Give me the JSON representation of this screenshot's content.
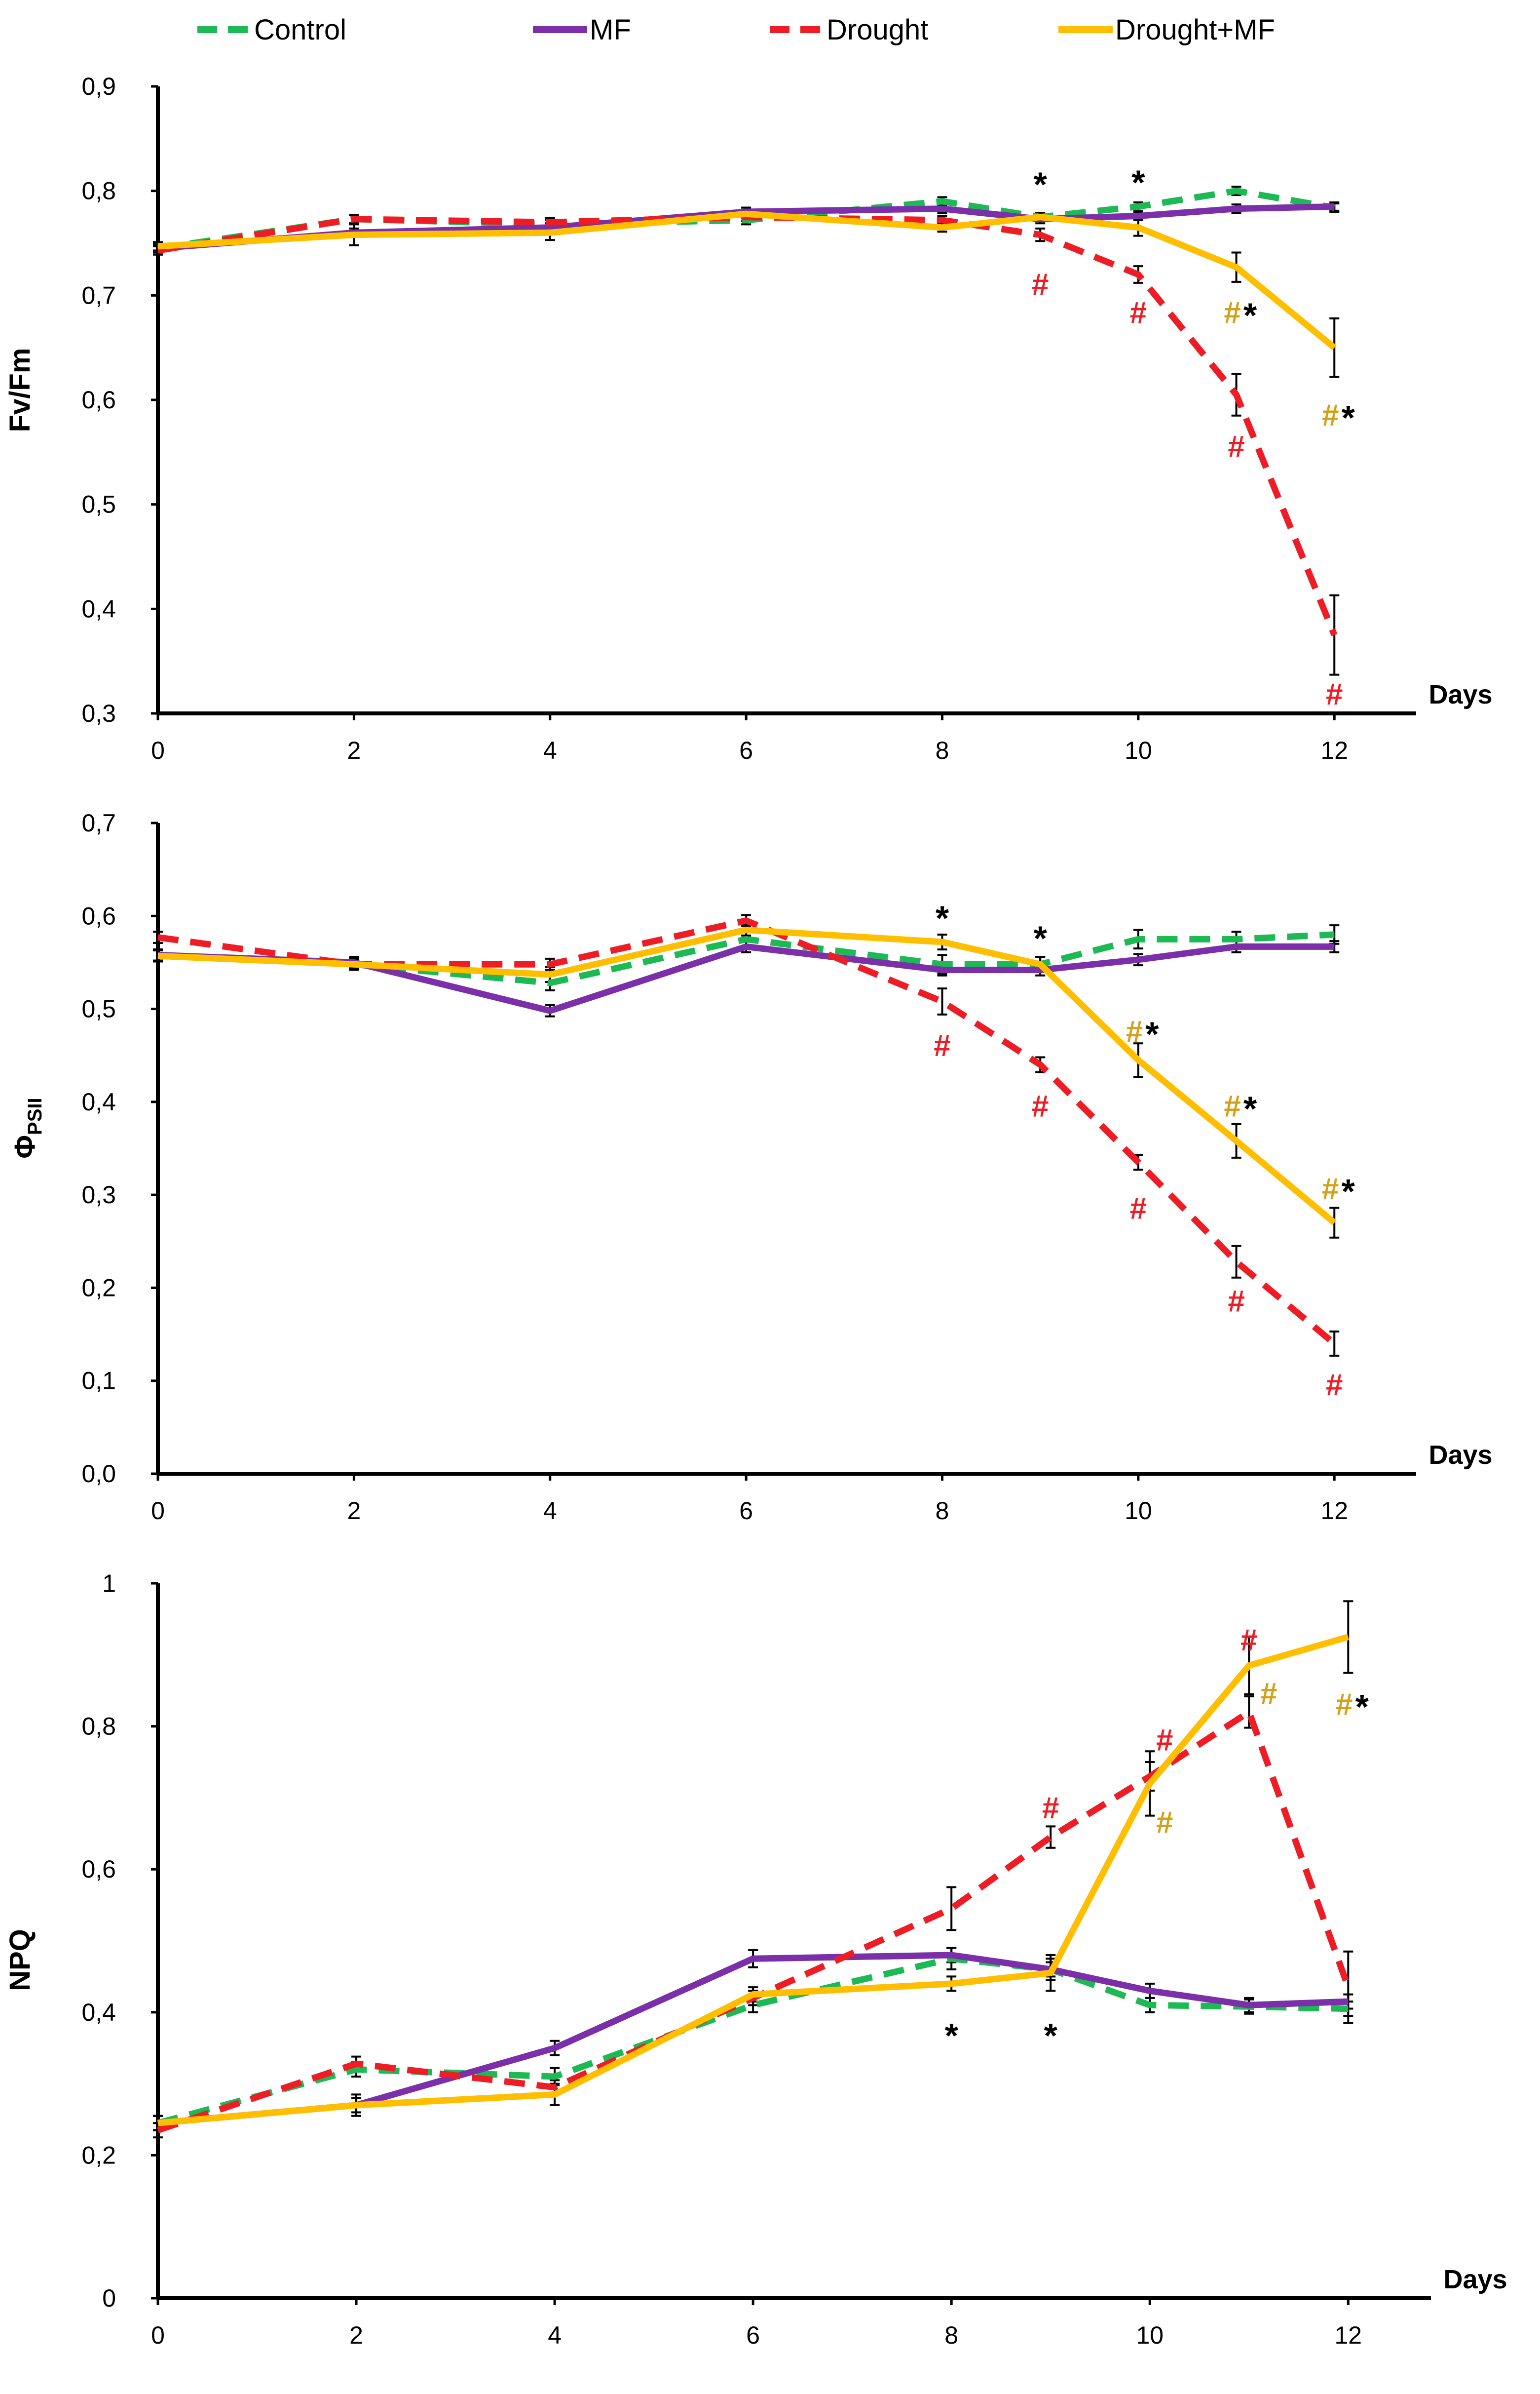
{
  "legend": [
    {
      "name": "Control",
      "color": "#1db954",
      "dashed": true
    },
    {
      "name": "MF",
      "color": "#7b2fa8",
      "dashed": false
    },
    {
      "name": "Drought",
      "color": "#ee1c24",
      "dashed": true
    },
    {
      "name": "Drought+MF",
      "color": "#ffbf00",
      "dashed": false
    }
  ],
  "colors": {
    "hash_red": "#ee1c24",
    "hash_gold": "#d4a017",
    "star": "#000000"
  },
  "chart_data": [
    {
      "type": "line",
      "title": "",
      "ylabel": "Fv/Fm",
      "xlabel": "Days",
      "x": [
        0,
        2,
        4,
        6,
        8,
        9,
        10,
        11,
        12
      ],
      "xticks": [
        0,
        2,
        4,
        6,
        8,
        10,
        12
      ],
      "ylim": [
        0.3,
        0.9
      ],
      "yticks": [
        0.3,
        0.4,
        0.5,
        0.6,
        0.7,
        0.8,
        0.9
      ],
      "ytick_labels": [
        "0,3",
        "0,4",
        "0,5",
        "0,6",
        "0,7",
        "0,8",
        "0,9"
      ],
      "series": [
        {
          "name": "Control",
          "values": [
            0.745,
            0.773,
            0.768,
            0.772,
            0.79,
            0.775,
            0.785,
            0.8,
            0.784
          ],
          "errors": [
            0.004,
            0.004,
            0.004,
            0.004,
            0.004,
            0.004,
            0.004,
            0.004,
            0.004
          ]
        },
        {
          "name": "MF",
          "values": [
            0.745,
            0.76,
            0.765,
            0.78,
            0.783,
            0.773,
            0.776,
            0.783,
            0.785
          ],
          "errors": [
            0.004,
            0.004,
            0.004,
            0.004,
            0.004,
            0.004,
            0.004,
            0.004,
            0.004
          ]
        },
        {
          "name": "Drought",
          "values": [
            0.743,
            0.773,
            0.77,
            0.775,
            0.772,
            0.758,
            0.72,
            0.605,
            0.375
          ],
          "errors": [
            0.004,
            0.004,
            0.004,
            0.004,
            0.004,
            0.006,
            0.008,
            0.02,
            0.038
          ]
        },
        {
          "name": "Drought+MF",
          "values": [
            0.747,
            0.758,
            0.76,
            0.778,
            0.765,
            0.775,
            0.765,
            0.727,
            0.65
          ],
          "errors": [
            0.004,
            0.01,
            0.007,
            0.004,
            0.004,
            0.004,
            0.008,
            0.014,
            0.028
          ]
        }
      ],
      "annotations": [
        {
          "text": "*",
          "x": 9,
          "y": 0.808,
          "color": "star"
        },
        {
          "text": "*",
          "x": 10,
          "y": 0.81,
          "color": "star"
        },
        {
          "text": "#",
          "x": 9,
          "y": 0.71,
          "color": "hash_red"
        },
        {
          "text": "#",
          "x": 10,
          "y": 0.683,
          "color": "hash_red"
        },
        {
          "text": "#",
          "x": 11,
          "y": 0.683,
          "color": "hash_gold",
          "dx": -8
        },
        {
          "text": "*",
          "x": 11,
          "y": 0.683,
          "color": "star",
          "dx": 28
        },
        {
          "text": "#",
          "x": 11,
          "y": 0.555,
          "color": "hash_red"
        },
        {
          "text": "#",
          "x": 12,
          "y": 0.585,
          "color": "hash_gold",
          "dx": -8
        },
        {
          "text": "*",
          "x": 12,
          "y": 0.585,
          "color": "star",
          "dx": 28
        },
        {
          "text": "#",
          "x": 12,
          "y": 0.318,
          "color": "hash_red"
        }
      ]
    },
    {
      "type": "line",
      "title": "",
      "ylabel_base": "Φ",
      "ylabel_sub": "PSII",
      "xlabel": "Days",
      "x": [
        0,
        2,
        4,
        6,
        8,
        9,
        10,
        11,
        12
      ],
      "xticks": [
        0,
        2,
        4,
        6,
        8,
        10,
        12
      ],
      "ylim": [
        0.0,
        0.7
      ],
      "yticks": [
        0.0,
        0.1,
        0.2,
        0.3,
        0.4,
        0.5,
        0.6,
        0.7
      ],
      "ytick_labels": [
        "0,0",
        "0,1",
        "0,2",
        "0,3",
        "0,4",
        "0,5",
        "0,6",
        "0,7"
      ],
      "series": [
        {
          "name": "Control",
          "values": [
            0.558,
            0.548,
            0.528,
            0.575,
            0.548,
            0.548,
            0.575,
            0.575,
            0.58
          ],
          "errors": [
            0.006,
            0.006,
            0.008,
            0.008,
            0.01,
            0.008,
            0.01,
            0.008,
            0.01
          ]
        },
        {
          "name": "MF",
          "values": [
            0.558,
            0.55,
            0.498,
            0.567,
            0.542,
            0.542,
            0.553,
            0.567,
            0.567
          ],
          "errors": [
            0.006,
            0.006,
            0.006,
            0.006,
            0.006,
            0.006,
            0.006,
            0.006,
            0.006
          ]
        },
        {
          "name": "Drought",
          "values": [
            0.577,
            0.548,
            0.548,
            0.595,
            0.508,
            0.44,
            0.335,
            0.228,
            0.14
          ],
          "errors": [
            0.006,
            0.006,
            0.006,
            0.006,
            0.014,
            0.008,
            0.008,
            0.017,
            0.013
          ]
        },
        {
          "name": "Drought+MF",
          "values": [
            0.557,
            0.548,
            0.537,
            0.585,
            0.572,
            0.548,
            0.445,
            0.358,
            0.27
          ],
          "errors": [
            0.006,
            0.006,
            0.008,
            0.006,
            0.008,
            0.008,
            0.018,
            0.018,
            0.016
          ]
        }
      ],
      "annotations": [
        {
          "text": "*",
          "x": 8,
          "y": 0.6,
          "color": "star"
        },
        {
          "text": "*",
          "x": 9,
          "y": 0.578,
          "color": "star"
        },
        {
          "text": "#",
          "x": 8,
          "y": 0.46,
          "color": "hash_red"
        },
        {
          "text": "#",
          "x": 10,
          "y": 0.475,
          "color": "hash_gold",
          "dx": -8
        },
        {
          "text": "*",
          "x": 10,
          "y": 0.475,
          "color": "star",
          "dx": 28
        },
        {
          "text": "#",
          "x": 9,
          "y": 0.395,
          "color": "hash_red"
        },
        {
          "text": "#",
          "x": 11,
          "y": 0.395,
          "color": "hash_gold",
          "dx": -8
        },
        {
          "text": "*",
          "x": 11,
          "y": 0.395,
          "color": "star",
          "dx": 28
        },
        {
          "text": "#",
          "x": 12,
          "y": 0.306,
          "color": "hash_gold",
          "dx": -8
        },
        {
          "text": "*",
          "x": 12,
          "y": 0.306,
          "color": "star",
          "dx": 28
        },
        {
          "text": "#",
          "x": 10,
          "y": 0.285,
          "color": "hash_red"
        },
        {
          "text": "#",
          "x": 11,
          "y": 0.185,
          "color": "hash_red"
        },
        {
          "text": "#",
          "x": 12,
          "y": 0.095,
          "color": "hash_red"
        }
      ]
    },
    {
      "type": "line",
      "title": "",
      "ylabel": "NPQ",
      "xlabel": "Days",
      "x": [
        0,
        2,
        4,
        6,
        8,
        9,
        10,
        11,
        12
      ],
      "xticks": [
        0,
        2,
        4,
        6,
        8,
        10,
        12
      ],
      "ylim": [
        0.0,
        1.0
      ],
      "yticks": [
        0.0,
        0.2,
        0.4,
        0.6,
        0.8,
        1.0
      ],
      "ytick_labels": [
        "0",
        "0,2",
        "0,4",
        "0,6",
        "0,8",
        "1"
      ],
      "series": [
        {
          "name": "Control",
          "values": [
            0.245,
            0.32,
            0.31,
            0.41,
            0.475,
            0.46,
            0.41,
            0.408,
            0.405
          ],
          "errors": [
            0.01,
            0.01,
            0.012,
            0.01,
            0.015,
            0.015,
            0.01,
            0.01,
            0.01
          ]
        },
        {
          "name": "MF",
          "values": [
            0.245,
            0.27,
            0.35,
            0.475,
            0.48,
            0.46,
            0.43,
            0.41,
            0.415
          ],
          "errors": [
            0.01,
            0.01,
            0.01,
            0.012,
            0.01,
            0.01,
            0.01,
            0.01,
            0.01
          ]
        },
        {
          "name": "Drought",
          "values": [
            0.235,
            0.328,
            0.295,
            0.42,
            0.545,
            0.645,
            0.73,
            0.82,
            0.435
          ],
          "errors": [
            0.01,
            0.01,
            0.01,
            0.01,
            0.03,
            0.015,
            0.02,
            0.022,
            0.05
          ]
        },
        {
          "name": "Drought+MF",
          "values": [
            0.245,
            0.27,
            0.285,
            0.425,
            0.44,
            0.455,
            0.72,
            0.885,
            0.925
          ],
          "errors": [
            0.01,
            0.015,
            0.015,
            0.01,
            0.01,
            0.025,
            0.045,
            0.04,
            0.05
          ]
        }
      ],
      "annotations": [
        {
          "text": "#",
          "x": 11,
          "y": 0.92,
          "color": "hash_red"
        },
        {
          "text": "#",
          "x": 11,
          "y": 0.845,
          "color": "hash_gold",
          "dx": 40
        },
        {
          "text": "#",
          "x": 12,
          "y": 0.83,
          "color": "hash_gold",
          "dx": -8
        },
        {
          "text": "*",
          "x": 12,
          "y": 0.83,
          "color": "star",
          "dx": 28
        },
        {
          "text": "#",
          "x": 10,
          "y": 0.78,
          "color": "hash_red",
          "dx": 30
        },
        {
          "text": "#",
          "x": 10,
          "y": 0.665,
          "color": "hash_gold",
          "dx": 30
        },
        {
          "text": "#",
          "x": 9,
          "y": 0.685,
          "color": "hash_red"
        },
        {
          "text": "*",
          "x": 8,
          "y": 0.37,
          "color": "star"
        },
        {
          "text": "*",
          "x": 9,
          "y": 0.37,
          "color": "star"
        }
      ]
    }
  ]
}
